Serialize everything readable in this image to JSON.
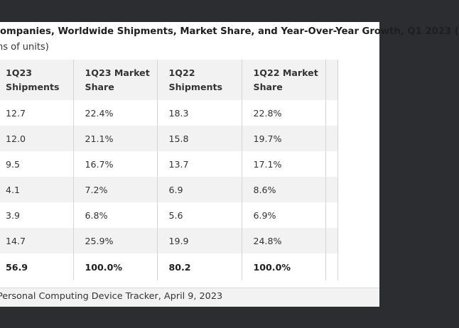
{
  "title": "ompanies, Worldwide Shipments, Market Share, and Year-Over-Year Growth, Q1 2023 (",
  "subtitle": "ns of units)",
  "table": {
    "headers": [
      "1Q23 Shipments",
      "1Q23 Market Share",
      "1Q22 Shipments",
      "1Q22 Market Share",
      ""
    ],
    "rows": [
      [
        "12.7",
        "22.4%",
        "18.3",
        "22.8%",
        ""
      ],
      [
        "12.0",
        "21.1%",
        "15.8",
        "19.7%",
        ""
      ],
      [
        "9.5",
        "16.7%",
        "13.7",
        "17.1%",
        ""
      ],
      [
        "4.1",
        "7.2%",
        "6.9",
        "8.6%",
        ""
      ],
      [
        "3.9",
        "6.8%",
        "5.6",
        "6.9%",
        ""
      ],
      [
        "14.7",
        "25.9%",
        "19.9",
        "24.8%",
        ""
      ]
    ],
    "total": [
      "56.9",
      "100.0%",
      "80.2",
      "100.0%",
      ""
    ]
  },
  "source": "Personal Computing Device Tracker, April 9, 2023"
}
